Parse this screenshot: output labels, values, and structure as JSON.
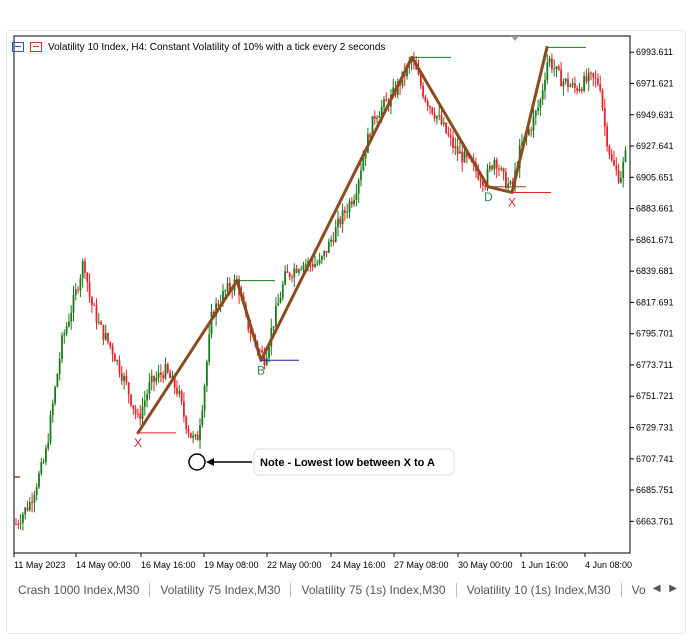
{
  "window": {
    "title": "Volatility 10 Index, H4:  Constant Volatility of 10% with a tick every 2 seconds"
  },
  "chart_data": {
    "type": "candlestick",
    "symbol": "Volatility 10 Index",
    "timeframe": "H4",
    "y_ticks": [
      "6993.611",
      "6971.621",
      "6949.631",
      "6927.641",
      "6905.651",
      "6883.661",
      "6861.671",
      "6839.681",
      "6817.691",
      "6795.701",
      "6773.711",
      "6751.721",
      "6729.731",
      "6707.741",
      "6685.751",
      "6663.761"
    ],
    "ylim": [
      6641.5,
      7005.0
    ],
    "x_ticks": [
      "11 May 2023",
      "14 May 00:00",
      "16 May 16:00",
      "19 May 08:00",
      "22 May 00:00",
      "24 May 16:00",
      "27 May 08:00",
      "30 May 00:00",
      "1 Jun 16:00",
      "4 Jun 08:00"
    ],
    "colors": {
      "up": "#1a7a1a",
      "down": "#e8202b",
      "pattern": "#8b4a1f"
    },
    "pattern_points": [
      {
        "label": "X",
        "price": 6726.0,
        "color": "#e8202b"
      },
      {
        "label": "",
        "price": 6833.0,
        "color": "#1a7a1a"
      },
      {
        "label": "B",
        "price": 6777.0,
        "color": "#2e8b57"
      },
      {
        "label": "",
        "price": 6990.0,
        "color": "#1a7a1a"
      },
      {
        "label": "D",
        "price": 6899.0,
        "color": "#2e8b57"
      },
      {
        "label": "X",
        "price": 6895.0,
        "color": "#e8202b"
      },
      {
        "label": "",
        "price": 6997.0,
        "color": "#1a7a1a"
      }
    ],
    "annotation": "Note - Lowest low between X to A"
  },
  "tabs": [
    "Crash 1000 Index,M30",
    "Volatility 75 Index,M30",
    "Volatility 75 (1s) Index,M30",
    "Volatility 10 (1s) Index,M30",
    "Vo"
  ],
  "tab_scroll": "◀ ▶"
}
